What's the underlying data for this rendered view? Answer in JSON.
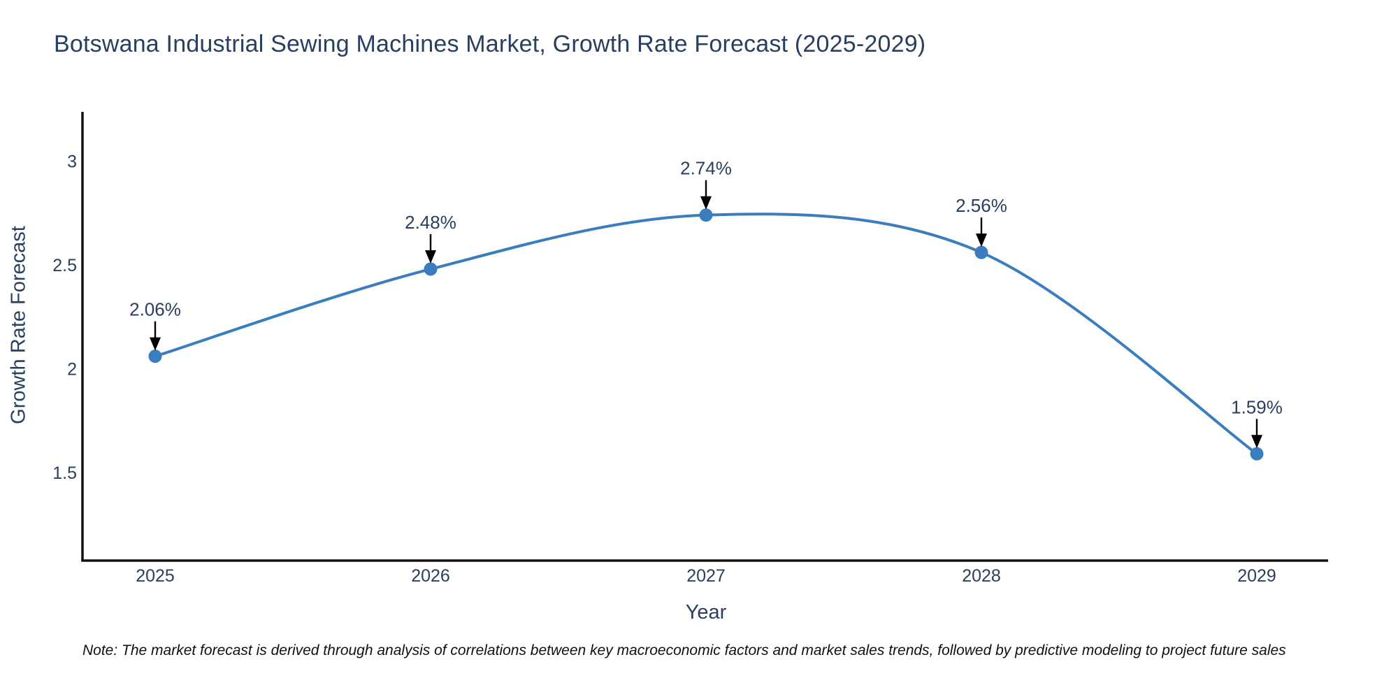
{
  "note": "Note: The market forecast is derived through analysis of correlations between key macroeconomic factors and market sales trends, followed by predictive modeling to project future sales",
  "colors": {
    "line": "#3a7ebf",
    "marker": "#3a7ebf",
    "text": "#2a3f5f",
    "axis": "#111111",
    "arrow": "#000000"
  },
  "chart_data": {
    "type": "line",
    "line_shape": "spline",
    "title": "Botswana Industrial Sewing Machines Market, Growth Rate Forecast (2025-2029)",
    "xlabel": "Year",
    "ylabel": "Growth Rate Forecast",
    "x": [
      2025,
      2026,
      2027,
      2028,
      2029
    ],
    "values": [
      2.06,
      2.48,
      2.74,
      2.56,
      1.59
    ],
    "point_labels": [
      "2.06%",
      "2.48%",
      "2.74%",
      "2.56%",
      "1.59%"
    ],
    "xticks": [
      2025,
      2026,
      2027,
      2028,
      2029
    ],
    "yticks": [
      1.5,
      2,
      2.5,
      3
    ],
    "ylim": [
      1.08,
      3.24
    ],
    "xlim_px_padding": "points inset ~104px from axis ends",
    "grid": false,
    "legend": "none",
    "annotations": "value label with downward black arrow above each data point"
  }
}
